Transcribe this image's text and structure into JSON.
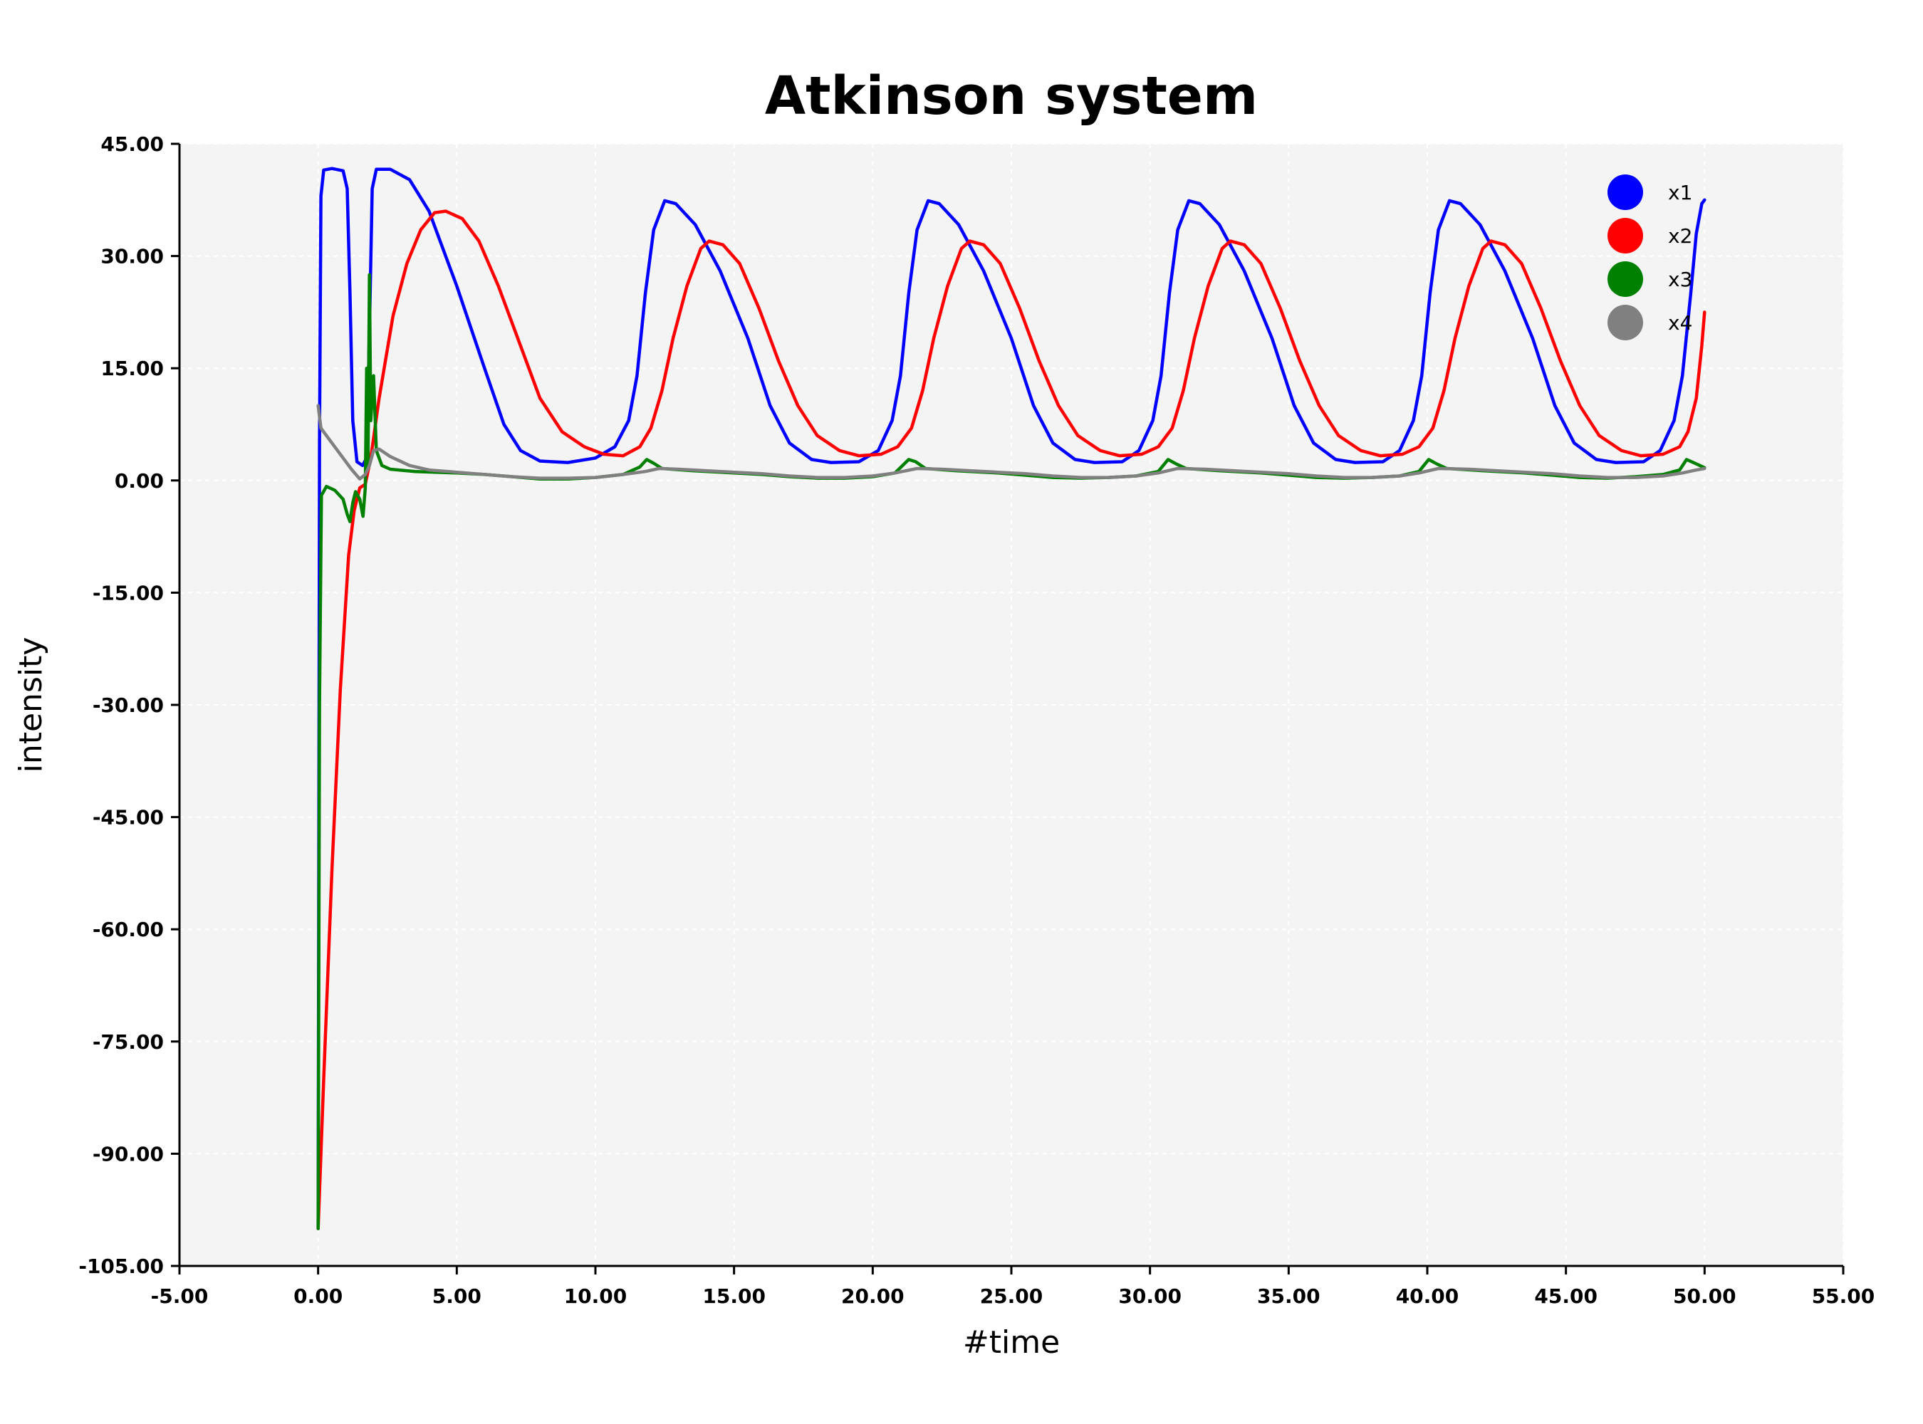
{
  "chart_data": {
    "type": "line",
    "title": "Atkinson system",
    "xlabel": "#time",
    "ylabel": "intensity",
    "xlim": [
      -5,
      55
    ],
    "ylim": [
      -105,
      45
    ],
    "x_ticks": [
      "-5.00",
      "0.00",
      "5.00",
      "10.00",
      "15.00",
      "20.00",
      "25.00",
      "30.00",
      "35.00",
      "40.00",
      "45.00",
      "50.00",
      "55.00"
    ],
    "y_ticks": [
      "45.00",
      "30.00",
      "15.00",
      "0.00",
      "-15.00",
      "-30.00",
      "-45.00",
      "-60.00",
      "-75.00",
      "-90.00",
      "-105.00"
    ],
    "grid": true,
    "legend_position": "top-right",
    "background": "#f4f4f4",
    "series": [
      {
        "name": "x1",
        "color": "#0000ff",
        "points": [
          [
            0,
            -100
          ],
          [
            0.05,
            5
          ],
          [
            0.1,
            38
          ],
          [
            0.2,
            41.5
          ],
          [
            0.5,
            41.7
          ],
          [
            0.9,
            41.4
          ],
          [
            1.05,
            39
          ],
          [
            1.15,
            25
          ],
          [
            1.25,
            8
          ],
          [
            1.4,
            2.5
          ],
          [
            1.6,
            2
          ],
          [
            1.75,
            3
          ],
          [
            1.85,
            20
          ],
          [
            1.95,
            39
          ],
          [
            2.1,
            41.6
          ],
          [
            2.6,
            41.6
          ],
          [
            3.3,
            40.2
          ],
          [
            4.0,
            36
          ],
          [
            5.0,
            26
          ],
          [
            6.0,
            15
          ],
          [
            6.7,
            7.5
          ],
          [
            7.3,
            4
          ],
          [
            8.0,
            2.6
          ],
          [
            9.0,
            2.4
          ],
          [
            10.0,
            3
          ],
          [
            10.7,
            4.5
          ],
          [
            11.2,
            8
          ],
          [
            11.5,
            14
          ],
          [
            11.8,
            25
          ],
          [
            12.1,
            33.5
          ],
          [
            12.5,
            37.4
          ],
          [
            12.9,
            37
          ],
          [
            13.6,
            34.2
          ],
          [
            14.5,
            28
          ],
          [
            15.5,
            19
          ],
          [
            16.3,
            10
          ],
          [
            17.0,
            5
          ],
          [
            17.8,
            2.8
          ],
          [
            18.5,
            2.4
          ],
          [
            19.5,
            2.5
          ],
          [
            20.2,
            4
          ],
          [
            20.7,
            8
          ],
          [
            21.0,
            14
          ],
          [
            21.3,
            25
          ],
          [
            21.6,
            33.5
          ],
          [
            22.0,
            37.4
          ],
          [
            22.4,
            37
          ],
          [
            23.1,
            34.2
          ],
          [
            24.0,
            28
          ],
          [
            25.0,
            19
          ],
          [
            25.8,
            10
          ],
          [
            26.5,
            5
          ],
          [
            27.3,
            2.8
          ],
          [
            28.0,
            2.4
          ],
          [
            29.0,
            2.5
          ],
          [
            29.6,
            4
          ],
          [
            30.1,
            8
          ],
          [
            30.4,
            14
          ],
          [
            30.7,
            25
          ],
          [
            31.0,
            33.5
          ],
          [
            31.4,
            37.4
          ],
          [
            31.8,
            37
          ],
          [
            32.5,
            34.2
          ],
          [
            33.4,
            28
          ],
          [
            34.4,
            19
          ],
          [
            35.2,
            10
          ],
          [
            35.9,
            5
          ],
          [
            36.7,
            2.8
          ],
          [
            37.4,
            2.4
          ],
          [
            38.4,
            2.5
          ],
          [
            39.0,
            4
          ],
          [
            39.5,
            8
          ],
          [
            39.8,
            14
          ],
          [
            40.1,
            25
          ],
          [
            40.4,
            33.5
          ],
          [
            40.8,
            37.4
          ],
          [
            41.2,
            37
          ],
          [
            41.9,
            34.2
          ],
          [
            42.8,
            28
          ],
          [
            43.8,
            19
          ],
          [
            44.6,
            10
          ],
          [
            45.3,
            5
          ],
          [
            46.1,
            2.8
          ],
          [
            46.8,
            2.4
          ],
          [
            47.8,
            2.5
          ],
          [
            48.4,
            4
          ],
          [
            48.9,
            8
          ],
          [
            49.2,
            14
          ],
          [
            49.5,
            25
          ],
          [
            49.7,
            33
          ],
          [
            49.9,
            37
          ],
          [
            50.0,
            37.5
          ]
        ]
      },
      {
        "name": "x2",
        "color": "#ff0000",
        "points": [
          [
            0,
            -100
          ],
          [
            0.2,
            -80
          ],
          [
            0.5,
            -52
          ],
          [
            0.8,
            -28
          ],
          [
            1.1,
            -10
          ],
          [
            1.3,
            -4
          ],
          [
            1.5,
            -1
          ],
          [
            1.7,
            -0.5
          ],
          [
            1.9,
            3
          ],
          [
            2.2,
            11
          ],
          [
            2.7,
            22
          ],
          [
            3.2,
            29
          ],
          [
            3.7,
            33.5
          ],
          [
            4.2,
            35.8
          ],
          [
            4.6,
            36
          ],
          [
            5.2,
            35
          ],
          [
            5.8,
            32
          ],
          [
            6.5,
            26
          ],
          [
            7.3,
            18
          ],
          [
            8.0,
            11
          ],
          [
            8.8,
            6.5
          ],
          [
            9.6,
            4.5
          ],
          [
            10.3,
            3.5
          ],
          [
            11.0,
            3.3
          ],
          [
            11.6,
            4.5
          ],
          [
            12.0,
            7
          ],
          [
            12.4,
            12
          ],
          [
            12.8,
            19
          ],
          [
            13.3,
            26
          ],
          [
            13.8,
            31
          ],
          [
            14.1,
            32
          ],
          [
            14.6,
            31.5
          ],
          [
            15.2,
            29
          ],
          [
            15.9,
            23
          ],
          [
            16.6,
            16
          ],
          [
            17.3,
            10
          ],
          [
            18.0,
            6
          ],
          [
            18.8,
            4
          ],
          [
            19.5,
            3.3
          ],
          [
            20.3,
            3.5
          ],
          [
            20.9,
            4.5
          ],
          [
            21.4,
            7
          ],
          [
            21.8,
            12
          ],
          [
            22.2,
            19
          ],
          [
            22.7,
            26
          ],
          [
            23.2,
            31
          ],
          [
            23.5,
            32
          ],
          [
            24.0,
            31.5
          ],
          [
            24.6,
            29
          ],
          [
            25.3,
            23
          ],
          [
            26.0,
            16
          ],
          [
            26.7,
            10
          ],
          [
            27.4,
            6
          ],
          [
            28.2,
            4
          ],
          [
            28.9,
            3.3
          ],
          [
            29.7,
            3.5
          ],
          [
            30.3,
            4.5
          ],
          [
            30.8,
            7
          ],
          [
            31.2,
            12
          ],
          [
            31.6,
            19
          ],
          [
            32.1,
            26
          ],
          [
            32.6,
            31
          ],
          [
            32.9,
            32
          ],
          [
            33.4,
            31.5
          ],
          [
            34.0,
            29
          ],
          [
            34.7,
            23
          ],
          [
            35.4,
            16
          ],
          [
            36.1,
            10
          ],
          [
            36.8,
            6
          ],
          [
            37.6,
            4
          ],
          [
            38.3,
            3.3
          ],
          [
            39.1,
            3.5
          ],
          [
            39.7,
            4.5
          ],
          [
            40.2,
            7
          ],
          [
            40.6,
            12
          ],
          [
            41.0,
            19
          ],
          [
            41.5,
            26
          ],
          [
            42.0,
            31
          ],
          [
            42.3,
            32
          ],
          [
            42.8,
            31.5
          ],
          [
            43.4,
            29
          ],
          [
            44.1,
            23
          ],
          [
            44.8,
            16
          ],
          [
            45.5,
            10
          ],
          [
            46.2,
            6
          ],
          [
            47.0,
            4
          ],
          [
            47.7,
            3.3
          ],
          [
            48.5,
            3.5
          ],
          [
            49.1,
            4.5
          ],
          [
            49.4,
            6.5
          ],
          [
            49.7,
            11
          ],
          [
            49.9,
            18
          ],
          [
            50.0,
            22.5
          ]
        ]
      },
      {
        "name": "x3",
        "color": "#008000",
        "points": [
          [
            0,
            -100
          ],
          [
            0.05,
            -30
          ],
          [
            0.12,
            -2
          ],
          [
            0.3,
            -0.8
          ],
          [
            0.6,
            -1.3
          ],
          [
            0.9,
            -2.5
          ],
          [
            1.05,
            -4.5
          ],
          [
            1.15,
            -5.5
          ],
          [
            1.25,
            -3
          ],
          [
            1.35,
            -1.5
          ],
          [
            1.5,
            -2.5
          ],
          [
            1.62,
            -4.8
          ],
          [
            1.7,
            -1
          ],
          [
            1.75,
            15
          ],
          [
            1.8,
            2
          ],
          [
            1.85,
            27.5
          ],
          [
            1.9,
            8
          ],
          [
            2.0,
            14
          ],
          [
            2.1,
            4
          ],
          [
            2.3,
            2
          ],
          [
            2.6,
            1.5
          ],
          [
            3.5,
            1.2
          ],
          [
            5,
            1
          ],
          [
            6,
            0.8
          ],
          [
            7,
            0.5
          ],
          [
            8,
            0.2
          ],
          [
            9,
            0.2
          ],
          [
            10,
            0.4
          ],
          [
            11,
            0.8
          ],
          [
            11.6,
            1.8
          ],
          [
            11.85,
            2.8
          ],
          [
            12.1,
            2.3
          ],
          [
            12.4,
            1.6
          ],
          [
            13.5,
            1.3
          ],
          [
            15,
            1
          ],
          [
            16,
            0.8
          ],
          [
            17,
            0.5
          ],
          [
            18,
            0.3
          ],
          [
            19,
            0.3
          ],
          [
            20,
            0.5
          ],
          [
            20.8,
            1
          ],
          [
            21.3,
            2.8
          ],
          [
            21.55,
            2.5
          ],
          [
            21.9,
            1.6
          ],
          [
            23,
            1.3
          ],
          [
            24.5,
            1
          ],
          [
            25.5,
            0.7
          ],
          [
            26.5,
            0.4
          ],
          [
            27.5,
            0.3
          ],
          [
            28.5,
            0.4
          ],
          [
            29.5,
            0.6
          ],
          [
            30.3,
            1.2
          ],
          [
            30.65,
            2.8
          ],
          [
            30.95,
            2.2
          ],
          [
            31.3,
            1.6
          ],
          [
            32.5,
            1.3
          ],
          [
            34,
            1
          ],
          [
            35,
            0.7
          ],
          [
            36,
            0.4
          ],
          [
            37,
            0.3
          ],
          [
            38,
            0.4
          ],
          [
            39,
            0.6
          ],
          [
            39.7,
            1.2
          ],
          [
            40.05,
            2.8
          ],
          [
            40.35,
            2.2
          ],
          [
            40.7,
            1.6
          ],
          [
            42,
            1.3
          ],
          [
            43.5,
            1
          ],
          [
            44.5,
            0.7
          ],
          [
            45.5,
            0.4
          ],
          [
            46.5,
            0.3
          ],
          [
            47.5,
            0.5
          ],
          [
            48.5,
            0.8
          ],
          [
            49.1,
            1.4
          ],
          [
            49.35,
            2.8
          ],
          [
            49.65,
            2.3
          ],
          [
            50.0,
            1.7
          ]
        ]
      },
      {
        "name": "x4",
        "color": "#808080",
        "points": [
          [
            0,
            10
          ],
          [
            0.1,
            7
          ],
          [
            0.4,
            5.5
          ],
          [
            0.8,
            3.5
          ],
          [
            1.2,
            1.5
          ],
          [
            1.5,
            0.2
          ],
          [
            1.7,
            0.8
          ],
          [
            1.85,
            2
          ],
          [
            2.0,
            4
          ],
          [
            2.2,
            4.2
          ],
          [
            2.6,
            3.2
          ],
          [
            3.3,
            2
          ],
          [
            4,
            1.4
          ],
          [
            5,
            1.1
          ],
          [
            6,
            0.8
          ],
          [
            7,
            0.5
          ],
          [
            8,
            0.3
          ],
          [
            9,
            0.3
          ],
          [
            10,
            0.4
          ],
          [
            11,
            0.8
          ],
          [
            11.8,
            1.2
          ],
          [
            12.3,
            1.6
          ],
          [
            13,
            1.5
          ],
          [
            14,
            1.3
          ],
          [
            15,
            1.1
          ],
          [
            16,
            0.9
          ],
          [
            17,
            0.6
          ],
          [
            18,
            0.4
          ],
          [
            19,
            0.4
          ],
          [
            20,
            0.6
          ],
          [
            20.8,
            1.0
          ],
          [
            21.6,
            1.6
          ],
          [
            22.5,
            1.5
          ],
          [
            23.5,
            1.3
          ],
          [
            24.5,
            1.1
          ],
          [
            25.5,
            0.9
          ],
          [
            26.5,
            0.6
          ],
          [
            27.5,
            0.4
          ],
          [
            28.5,
            0.4
          ],
          [
            29.5,
            0.6
          ],
          [
            30.3,
            1.0
          ],
          [
            31.0,
            1.6
          ],
          [
            32,
            1.5
          ],
          [
            33,
            1.3
          ],
          [
            34,
            1.1
          ],
          [
            35,
            0.9
          ],
          [
            36,
            0.6
          ],
          [
            37,
            0.4
          ],
          [
            38,
            0.4
          ],
          [
            39,
            0.6
          ],
          [
            39.7,
            1.0
          ],
          [
            40.4,
            1.6
          ],
          [
            41.5,
            1.5
          ],
          [
            42.5,
            1.3
          ],
          [
            43.5,
            1.1
          ],
          [
            44.5,
            0.9
          ],
          [
            45.5,
            0.6
          ],
          [
            46.5,
            0.4
          ],
          [
            47.5,
            0.4
          ],
          [
            48.5,
            0.6
          ],
          [
            49.2,
            1.0
          ],
          [
            49.7,
            1.4
          ],
          [
            50.0,
            1.6
          ]
        ]
      }
    ]
  }
}
